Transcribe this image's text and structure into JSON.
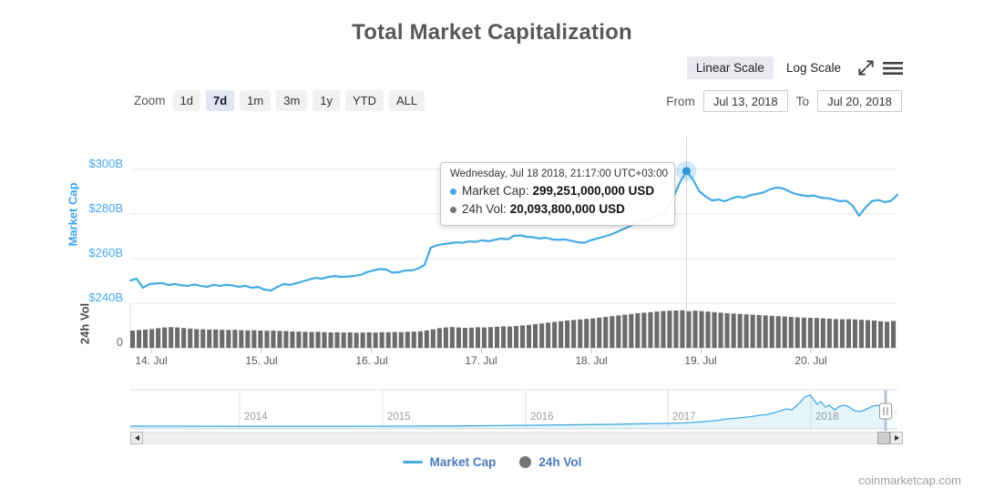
{
  "title": "Total Market Capitalization",
  "scale_toggle": {
    "linear_label": "Linear Scale",
    "log_label": "Log Scale",
    "selected": "Linear Scale"
  },
  "zoom_bar": {
    "label": "Zoom",
    "options": [
      "1d",
      "7d",
      "1m",
      "3m",
      "1y",
      "YTD",
      "ALL"
    ],
    "selected": "7d"
  },
  "range": {
    "from_label": "From",
    "from_value": "Jul 13, 2018",
    "to_label": "To",
    "to_value": "Jul 20, 2018"
  },
  "tooltip": {
    "header": "Wednesday, Jul 18 2018, 21:17:00 UTC+03:00",
    "rows": [
      {
        "label": "Market Cap:",
        "value": "299,251,000,000 USD",
        "color": "#44aae3"
      },
      {
        "label": "24h Vol:",
        "value": "20,093,800,000 USD",
        "color": "#757575"
      }
    ]
  },
  "legend": [
    {
      "label": "Market Cap",
      "swatch": "line",
      "color": "#44aae3"
    },
    {
      "label": "24h Vol",
      "swatch": "dot",
      "color": "#757575"
    }
  ],
  "footer": "coinmarketcap.com",
  "colors": {
    "line_blue": "#44aae3",
    "axis_blue": "#45a9ec",
    "volume_gray": "#6b6b6b",
    "legend_text_blue": "#4b7abc",
    "grid_gray": "#e8e8e8"
  },
  "chart_data": {
    "type": "line",
    "title": "Total Market Capitalization",
    "x_axis": {
      "tick_labels": [
        "14. Jul",
        "15. Jul",
        "16. Jul",
        "17. Jul",
        "18. Jul",
        "19. Jul",
        "20. Jul"
      ]
    },
    "left_axis": {
      "title": "Market Cap",
      "tick_labels": [
        "$300B",
        "$280B",
        "$260B",
        "$240B"
      ],
      "tick_values_billion": [
        300,
        280,
        260,
        240
      ]
    },
    "volume_axis": {
      "title": "24h Vol",
      "tick_labels": [
        "0"
      ]
    },
    "series": [
      {
        "name": "Market Cap",
        "type": "line",
        "unit": "billion USD",
        "color": "#44aae3",
        "values": [
          250.2,
          251.0,
          246.9,
          248.6,
          248.8,
          249.0,
          248.2,
          248.6,
          248.0,
          247.8,
          248.4,
          247.8,
          247.3,
          248.2,
          247.8,
          248.2,
          248.0,
          247.3,
          247.8,
          246.9,
          247.3,
          246.1,
          245.7,
          247.3,
          248.6,
          248.2,
          249.0,
          249.8,
          250.6,
          251.4,
          251.0,
          251.8,
          252.2,
          251.8,
          252.0,
          252.2,
          252.7,
          253.9,
          254.7,
          255.3,
          255.1,
          253.7,
          253.9,
          254.7,
          254.7,
          255.5,
          257.1,
          264.9,
          266.0,
          266.5,
          266.9,
          267.3,
          267.1,
          267.7,
          267.5,
          268.2,
          267.8,
          268.4,
          269.0,
          268.6,
          270.2,
          270.4,
          269.8,
          269.6,
          269.0,
          269.4,
          268.6,
          268.4,
          268.6,
          268.0,
          267.3,
          267.1,
          268.2,
          269.0,
          269.8,
          270.6,
          271.8,
          273.1,
          274.3,
          275.5,
          276.7,
          277.6,
          278.4,
          279.6,
          282.0,
          287.8,
          294.3,
          299.25,
          295.5,
          290.2,
          287.8,
          286.1,
          286.5,
          285.7,
          286.9,
          287.8,
          287.3,
          288.4,
          289.0,
          289.6,
          291.0,
          291.8,
          291.6,
          290.2,
          289.0,
          288.4,
          288.0,
          288.2,
          287.3,
          287.1,
          286.5,
          285.7,
          285.9,
          283.7,
          279.2,
          282.9,
          285.7,
          286.3,
          285.3,
          285.9,
          288.6
        ]
      },
      {
        "name": "24h Vol",
        "type": "column",
        "unit": "billion USD",
        "color": "#6b6b6b",
        "values": [
          9.5,
          9.8,
          10.0,
          10.3,
          10.8,
          11.2,
          11.4,
          11.2,
          10.9,
          10.6,
          10.3,
          10.2,
          10.0,
          10.1,
          9.9,
          9.8,
          9.9,
          9.7,
          9.6,
          9.7,
          9.5,
          9.4,
          9.5,
          9.3,
          9.2,
          9.0,
          8.9,
          8.8,
          8.7,
          8.8,
          8.6,
          8.5,
          8.6,
          8.4,
          8.5,
          8.3,
          8.4,
          8.5,
          8.4,
          8.6,
          8.5,
          8.7,
          8.6,
          8.8,
          8.9,
          9.1,
          9.6,
          10.2,
          10.8,
          11.2,
          11.4,
          11.2,
          11.0,
          11.1,
          11.3,
          11.2,
          11.4,
          11.6,
          11.8,
          11.7,
          12.0,
          12.3,
          12.6,
          13.0,
          13.4,
          13.8,
          14.2,
          14.6,
          15.0,
          15.3,
          15.6,
          15.9,
          16.2,
          16.6,
          17.0,
          17.4,
          17.8,
          18.2,
          18.6,
          19.0,
          19.3,
          19.6,
          19.9,
          20.2,
          20.4,
          20.5,
          20.6,
          20.1,
          20.4,
          20.2,
          19.9,
          19.6,
          19.3,
          19.0,
          18.8,
          18.6,
          18.4,
          18.2,
          18.0,
          17.8,
          17.6,
          17.4,
          17.2,
          17.0,
          16.8,
          16.6,
          16.5,
          16.4,
          16.2,
          16.0,
          15.8,
          15.7,
          15.8,
          15.6,
          15.4,
          15.2,
          15.0,
          14.6,
          14.3,
          14.8
        ]
      }
    ],
    "highlight": {
      "series": "Market Cap",
      "index": 87,
      "value_billion": 299.251,
      "volume_billion": 20.0938
    },
    "navigator": {
      "year_labels": [
        "2014",
        "2015",
        "2016",
        "2017",
        "2018"
      ],
      "unit": "billion USD",
      "points": [
        [
          0.0,
          67
        ],
        [
          0.06,
          67
        ],
        [
          0.12,
          66
        ],
        [
          0.2,
          65
        ],
        [
          0.28,
          65
        ],
        [
          0.36,
          68
        ],
        [
          0.42,
          72
        ],
        [
          0.48,
          80
        ],
        [
          0.52,
          90
        ],
        [
          0.56,
          97
        ],
        [
          0.6,
          106
        ],
        [
          0.64,
          116
        ],
        [
          0.67,
          127
        ],
        [
          0.7,
          134
        ],
        [
          0.72,
          145
        ],
        [
          0.74,
          168
        ],
        [
          0.76,
          200
        ],
        [
          0.78,
          246
        ],
        [
          0.8,
          282
        ],
        [
          0.81,
          304
        ],
        [
          0.82,
          336
        ],
        [
          0.83,
          352
        ],
        [
          0.84,
          400
        ],
        [
          0.848,
          448
        ],
        [
          0.855,
          492
        ],
        [
          0.862,
          470
        ],
        [
          0.868,
          560
        ],
        [
          0.874,
          672
        ],
        [
          0.879,
          784
        ],
        [
          0.886,
          830
        ],
        [
          0.89,
          750
        ],
        [
          0.895,
          605
        ],
        [
          0.9,
          672
        ],
        [
          0.906,
          538
        ],
        [
          0.911,
          582
        ],
        [
          0.918,
          470
        ],
        [
          0.925,
          560
        ],
        [
          0.931,
          582
        ],
        [
          0.937,
          538
        ],
        [
          0.944,
          448
        ],
        [
          0.951,
          426
        ],
        [
          0.958,
          470
        ],
        [
          0.965,
          538
        ],
        [
          0.972,
          582
        ],
        [
          0.978,
          560
        ],
        [
          0.985,
          493
        ],
        [
          0.992,
          426
        ],
        [
          1.0,
          403
        ]
      ]
    }
  }
}
